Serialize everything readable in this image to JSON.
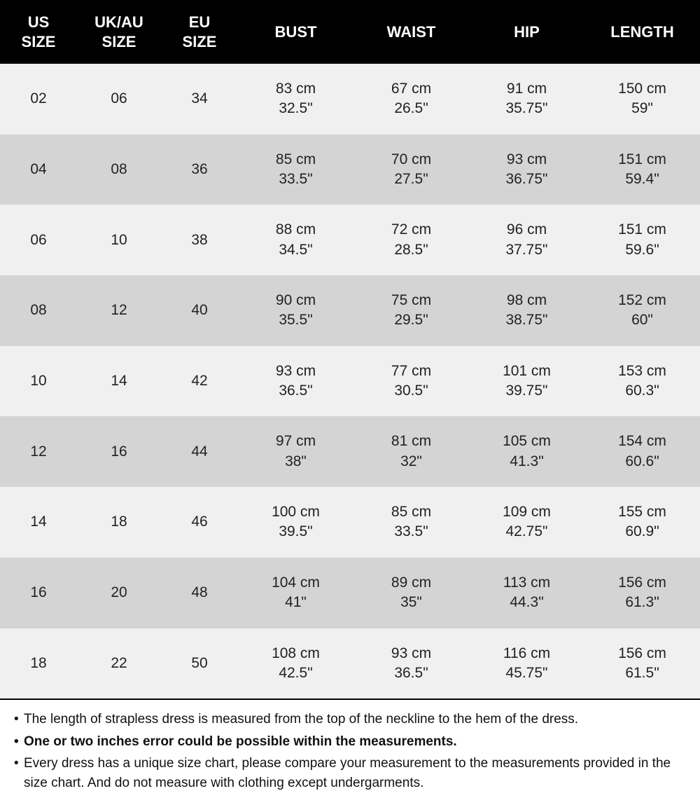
{
  "table": {
    "columns": [
      {
        "line1": "US",
        "line2": "SIZE"
      },
      {
        "line1": "UK/AU",
        "line2": "SIZE"
      },
      {
        "line1": "EU",
        "line2": "SIZE"
      },
      {
        "line1": "BUST",
        "line2": ""
      },
      {
        "line1": "WAIST",
        "line2": ""
      },
      {
        "line1": "HIP",
        "line2": ""
      },
      {
        "line1": "LENGTH",
        "line2": ""
      }
    ],
    "col_widths_pct": [
      11,
      12,
      11,
      16.5,
      16.5,
      16.5,
      16.5
    ],
    "rows": [
      {
        "us": "02",
        "uk": "06",
        "eu": "34",
        "bust_cm": "83 cm",
        "bust_in": "32.5\"",
        "waist_cm": "67 cm",
        "waist_in": "26.5\"",
        "hip_cm": "91 cm",
        "hip_in": "35.75\"",
        "length_cm": "150 cm",
        "length_in": "59\""
      },
      {
        "us": "04",
        "uk": "08",
        "eu": "36",
        "bust_cm": "85 cm",
        "bust_in": "33.5\"",
        "waist_cm": "70 cm",
        "waist_in": "27.5\"",
        "hip_cm": "93 cm",
        "hip_in": "36.75\"",
        "length_cm": "151 cm",
        "length_in": "59.4\""
      },
      {
        "us": "06",
        "uk": "10",
        "eu": "38",
        "bust_cm": "88 cm",
        "bust_in": "34.5\"",
        "waist_cm": "72 cm",
        "waist_in": "28.5\"",
        "hip_cm": "96 cm",
        "hip_in": "37.75\"",
        "length_cm": "151 cm",
        "length_in": "59.6\""
      },
      {
        "us": "08",
        "uk": "12",
        "eu": "40",
        "bust_cm": "90 cm",
        "bust_in": "35.5\"",
        "waist_cm": "75 cm",
        "waist_in": "29.5\"",
        "hip_cm": "98 cm",
        "hip_in": "38.75\"",
        "length_cm": "152 cm",
        "length_in": "60\""
      },
      {
        "us": "10",
        "uk": "14",
        "eu": "42",
        "bust_cm": "93 cm",
        "bust_in": "36.5\"",
        "waist_cm": "77 cm",
        "waist_in": "30.5\"",
        "hip_cm": "101 cm",
        "hip_in": "39.75\"",
        "length_cm": "153 cm",
        "length_in": "60.3\""
      },
      {
        "us": "12",
        "uk": "16",
        "eu": "44",
        "bust_cm": "97 cm",
        "bust_in": "38\"",
        "waist_cm": "81 cm",
        "waist_in": "32\"",
        "hip_cm": "105 cm",
        "hip_in": "41.3\"",
        "length_cm": "154 cm",
        "length_in": "60.6\""
      },
      {
        "us": "14",
        "uk": "18",
        "eu": "46",
        "bust_cm": "100 cm",
        "bust_in": "39.5\"",
        "waist_cm": "85 cm",
        "waist_in": "33.5\"",
        "hip_cm": "109 cm",
        "hip_in": "42.75\"",
        "length_cm": "155 cm",
        "length_in": "60.9\""
      },
      {
        "us": "16",
        "uk": "20",
        "eu": "48",
        "bust_cm": "104 cm",
        "bust_in": "41\"",
        "waist_cm": "89 cm",
        "waist_in": "35\"",
        "hip_cm": "113 cm",
        "hip_in": "44.3\"",
        "length_cm": "156 cm",
        "length_in": "61.3\""
      },
      {
        "us": "18",
        "uk": "22",
        "eu": "50",
        "bust_cm": "108 cm",
        "bust_in": "42.5\"",
        "waist_cm": "93 cm",
        "waist_in": "36.5\"",
        "hip_cm": "116 cm",
        "hip_in": "45.75\"",
        "length_cm": "156 cm",
        "length_in": "61.5\""
      }
    ],
    "row_colors": [
      "#f0f0f0",
      "#d4d4d4"
    ],
    "header_bg": "#000000",
    "header_fg": "#ffffff",
    "text_color": "#222222",
    "header_fontsize": 22,
    "body_fontsize": 21
  },
  "notes": {
    "items": [
      {
        "text": "The length of strapless dress is measured from the top of the neckline to the hem of the dress.",
        "bold": false
      },
      {
        "text": "One or two inches error could be possible within the measurements.",
        "bold": true
      },
      {
        "text": "Every dress has a unique size chart, please compare your measurement to the measurements provided in the size chart. And do not measure with clothing except undergarments.",
        "bold": false
      }
    ],
    "fontsize": 19,
    "border_top_color": "#000000"
  }
}
